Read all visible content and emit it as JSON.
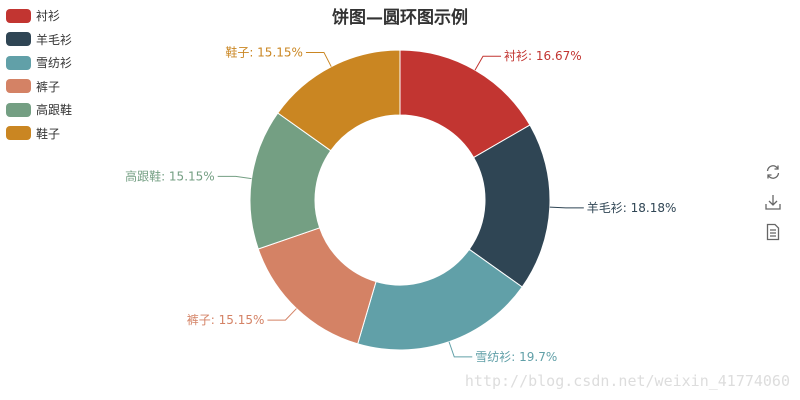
{
  "chart_data": {
    "type": "pie",
    "title": "饼图—圆环图示例",
    "donut": true,
    "legend_position": "top-left",
    "categories": [
      "衬衫",
      "羊毛衫",
      "雪纺衫",
      "裤子",
      "高跟鞋",
      "鞋子"
    ],
    "percent_labels": [
      "16.67%",
      "18.18%",
      "19.7%",
      "15.15%",
      "15.15%",
      "15.15%"
    ],
    "values": [
      16.67,
      18.18,
      19.7,
      15.15,
      15.15,
      15.15
    ],
    "colors": [
      "#c23531",
      "#2f4554",
      "#61a0a8",
      "#d48265",
      "#749f83",
      "#ca8622"
    ]
  },
  "toolbox": {
    "icons": [
      "refresh-icon",
      "download-icon",
      "data-view-icon"
    ]
  },
  "watermark": "http://blog.csdn.net/weixin_41774060"
}
